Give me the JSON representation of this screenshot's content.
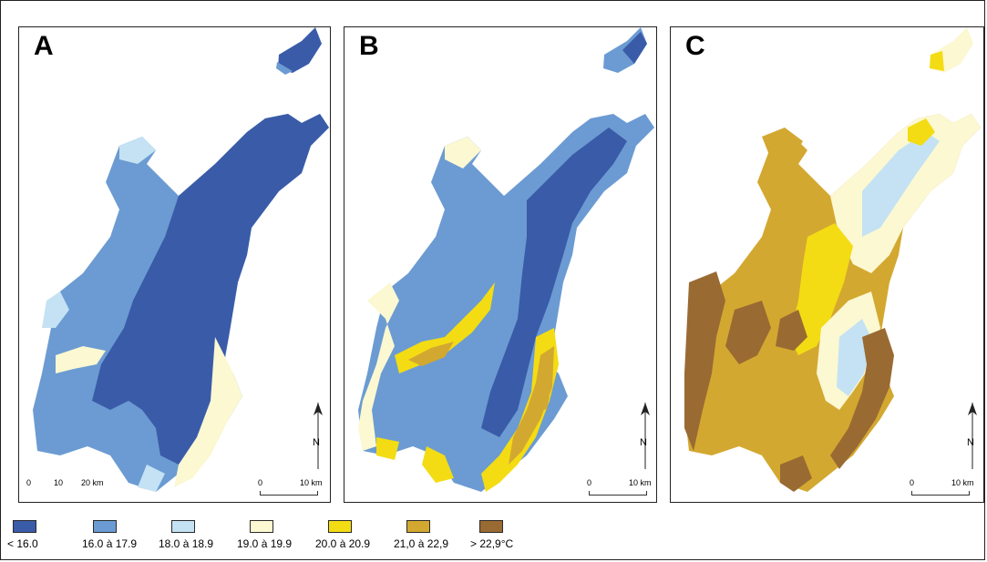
{
  "panels": [
    {
      "letter": "A",
      "scale": {
        "zero": "0",
        "mid": "10",
        "end": "20 km"
      },
      "scale_2": {
        "zero": "0",
        "end": "10 km"
      },
      "north": "N"
    },
    {
      "letter": "B",
      "scale": {
        "zero": "0",
        "end": "10 km"
      },
      "north": "N"
    },
    {
      "letter": "C",
      "scale": {
        "zero": "0",
        "end": "10 km"
      },
      "north": "N"
    }
  ],
  "legend": [
    {
      "label": "< 16.0",
      "color": "#3a5ba8"
    },
    {
      "label": "16.0 à 17.9",
      "color": "#6b9bd2"
    },
    {
      "label": "18.0 à 18.9",
      "color": "#c4e2f3"
    },
    {
      "label": "19.0 à 19.9",
      "color": "#fbf8d2"
    },
    {
      "label": "20.0 à 20.9",
      "color": "#f3dc14"
    },
    {
      "label": "21,0 à 22,9",
      "color": "#d3a830"
    },
    {
      "label": "> 22,9°C",
      "color": "#9a6a33"
    }
  ]
}
